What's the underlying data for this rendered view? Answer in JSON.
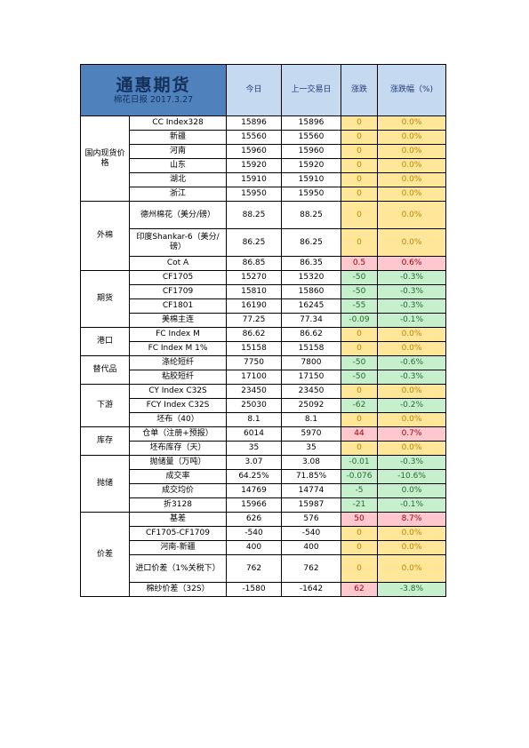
{
  "header": {
    "title": "通惠期货",
    "subtitle": "棉花日报 2017.3.27",
    "col_today": "今日",
    "col_prev": "上一交易日",
    "col_change": "涨跌",
    "col_pct": "涨跌幅（%)"
  },
  "colors": {
    "header_brand": "#4f81bd",
    "header_cell": "#c5d9f1",
    "flat": "#ffe699",
    "down": "#c6efce",
    "up": "#ffc7ce"
  },
  "sections": [
    {
      "category": "国内现货价格",
      "rows": [
        {
          "name": "CC Index328",
          "today": "15896",
          "prev": "15896",
          "change": "0",
          "pct": "0.0%",
          "status": "flat"
        },
        {
          "name": "新疆",
          "today": "15560",
          "prev": "15560",
          "change": "0",
          "pct": "0.0%",
          "status": "flat"
        },
        {
          "name": "河南",
          "today": "15960",
          "prev": "15960",
          "change": "0",
          "pct": "0.0%",
          "status": "flat"
        },
        {
          "name": "山东",
          "today": "15920",
          "prev": "15920",
          "change": "0",
          "pct": "0.0%",
          "status": "flat"
        },
        {
          "name": "湖北",
          "today": "15910",
          "prev": "15910",
          "change": "0",
          "pct": "0.0%",
          "status": "flat"
        },
        {
          "name": "浙江",
          "today": "15950",
          "prev": "15950",
          "change": "0",
          "pct": "0.0%",
          "status": "flat"
        }
      ]
    },
    {
      "category": "外棉",
      "rows": [
        {
          "name": "德州棉花（美分/磅）",
          "today": "88.25",
          "prev": "88.25",
          "change": "0",
          "pct": "0.0%",
          "status": "flat",
          "tall": true
        },
        {
          "name": "印度Shankar-6（美分/磅）",
          "today": "86.25",
          "prev": "86.25",
          "change": "0",
          "pct": "0.0%",
          "status": "flat",
          "tall": true
        },
        {
          "name": "Cot A",
          "today": "86.85",
          "prev": "86.35",
          "change": "0.5",
          "pct": "0.6%",
          "status": "up"
        }
      ]
    },
    {
      "category": "期货",
      "rows": [
        {
          "name": "CF1705",
          "today": "15270",
          "prev": "15320",
          "change": "-50",
          "pct": "-0.3%",
          "status": "down"
        },
        {
          "name": "CF1709",
          "today": "15810",
          "prev": "15860",
          "change": "-50",
          "pct": "-0.3%",
          "status": "down"
        },
        {
          "name": "CF1801",
          "today": "16190",
          "prev": "16245",
          "change": "-55",
          "pct": "-0.3%",
          "status": "down"
        },
        {
          "name": "美棉主连",
          "today": "77.25",
          "prev": "77.34",
          "change": "-0.09",
          "pct": "-0.1%",
          "status": "down"
        }
      ]
    },
    {
      "category": "港口",
      "rows": [
        {
          "name": "FC Index M",
          "today": "86.62",
          "prev": "86.62",
          "change": "0",
          "pct": "0.0%",
          "status": "flat"
        },
        {
          "name": "FC Index M 1%",
          "today": "15158",
          "prev": "15158",
          "change": "0",
          "pct": "0.0%",
          "status": "flat"
        }
      ]
    },
    {
      "category": "替代品",
      "rows": [
        {
          "name": "涤纶短纤",
          "today": "7750",
          "prev": "7800",
          "change": "-50",
          "pct": "-0.6%",
          "status": "down"
        },
        {
          "name": "粘胶短纤",
          "today": "17100",
          "prev": "17150",
          "change": "-50",
          "pct": "-0.3%",
          "status": "down"
        }
      ]
    },
    {
      "category": "下游",
      "rows": [
        {
          "name": "CY Index C32S",
          "today": "23450",
          "prev": "23450",
          "change": "0",
          "pct": "0.0%",
          "status": "flat"
        },
        {
          "name": "FCY Index C32S",
          "today": "25030",
          "prev": "25092",
          "change": "-62",
          "pct": "-0.2%",
          "status": "down"
        },
        {
          "name": "坯布（40）",
          "today": "8.1",
          "prev": "8.1",
          "change": "0",
          "pct": "0.0%",
          "status": "flat"
        }
      ]
    },
    {
      "category": "库存",
      "rows": [
        {
          "name": "仓单（注册+预报）",
          "today": "6014",
          "prev": "5970",
          "change": "44",
          "pct": "0.7%",
          "status": "up"
        },
        {
          "name": "坯布库存（天）",
          "today": "35",
          "prev": "35",
          "change": "0",
          "pct": "0.0%",
          "status": "flat"
        }
      ]
    },
    {
      "category": "抛储",
      "rows": [
        {
          "name": "抛储量（万吨）",
          "today": "3.07",
          "prev": "3.08",
          "change": "-0.01",
          "pct": "-0.3%",
          "status": "down"
        },
        {
          "name": "成交率",
          "today": "64.25%",
          "prev": "71.85%",
          "change": "-0.076",
          "pct": "-10.6%",
          "status": "down"
        },
        {
          "name": "成交均价",
          "today": "14769",
          "prev": "14774",
          "change": "-5",
          "pct": "0.0%",
          "status": "down"
        },
        {
          "name": "折3128",
          "today": "15966",
          "prev": "15987",
          "change": "-21",
          "pct": "-0.1%",
          "status": "down"
        }
      ]
    },
    {
      "category": "价差",
      "rows": [
        {
          "name": "基差",
          "today": "626",
          "prev": "576",
          "change": "50",
          "pct": "8.7%",
          "status": "up"
        },
        {
          "name": "CF1705-CF1709",
          "today": "-540",
          "prev": "-540",
          "change": "0",
          "pct": "0.0%",
          "status": "flat"
        },
        {
          "name": "河南-新疆",
          "today": "400",
          "prev": "400",
          "change": "0",
          "pct": "0.0%",
          "status": "flat"
        },
        {
          "name": "进口价差（1%关税下）",
          "today": "762",
          "prev": "762",
          "change": "0",
          "pct": "0.0%",
          "status": "flat",
          "tall": true
        },
        {
          "name": "棉纱价差（32S）",
          "today": "-1580",
          "prev": "-1642",
          "change": "62",
          "pct": "-3.8%",
          "status": "mixed"
        }
      ]
    }
  ]
}
